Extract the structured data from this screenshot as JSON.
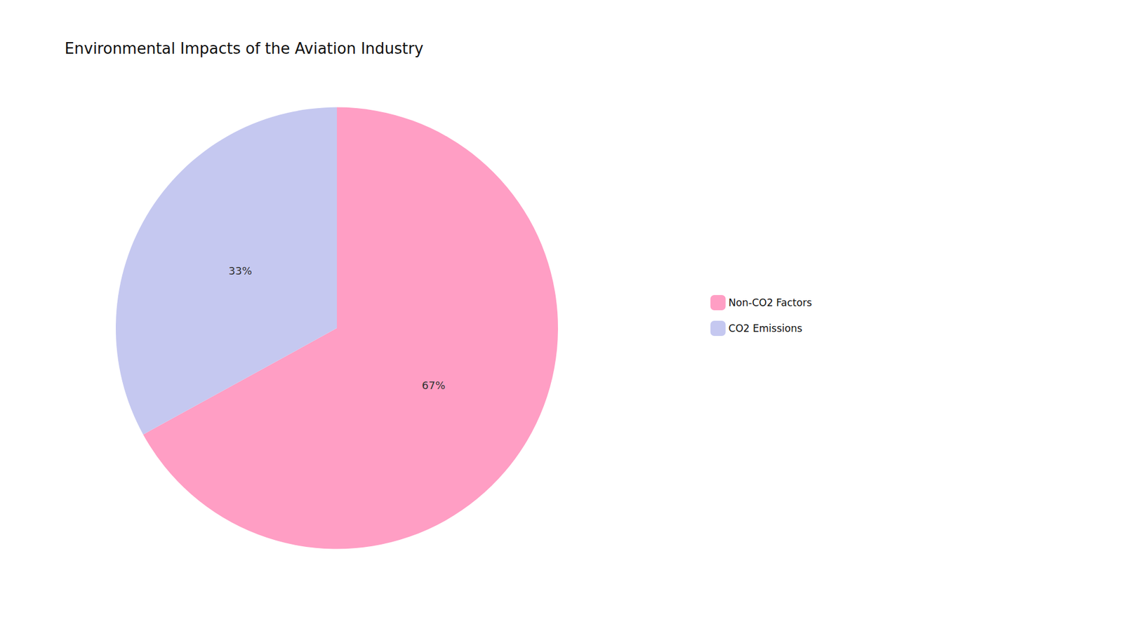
{
  "chart_data": {
    "type": "pie",
    "title": "Environmental Impacts of the Aviation Industry",
    "categories": [
      "Non-CO2 Factors",
      "CO2 Emissions"
    ],
    "values": [
      67,
      33
    ],
    "value_labels": [
      "67%",
      "33%"
    ],
    "colors": [
      "#FF9EC4",
      "#C5C8F0"
    ],
    "data_labels": true,
    "legend": "right"
  }
}
